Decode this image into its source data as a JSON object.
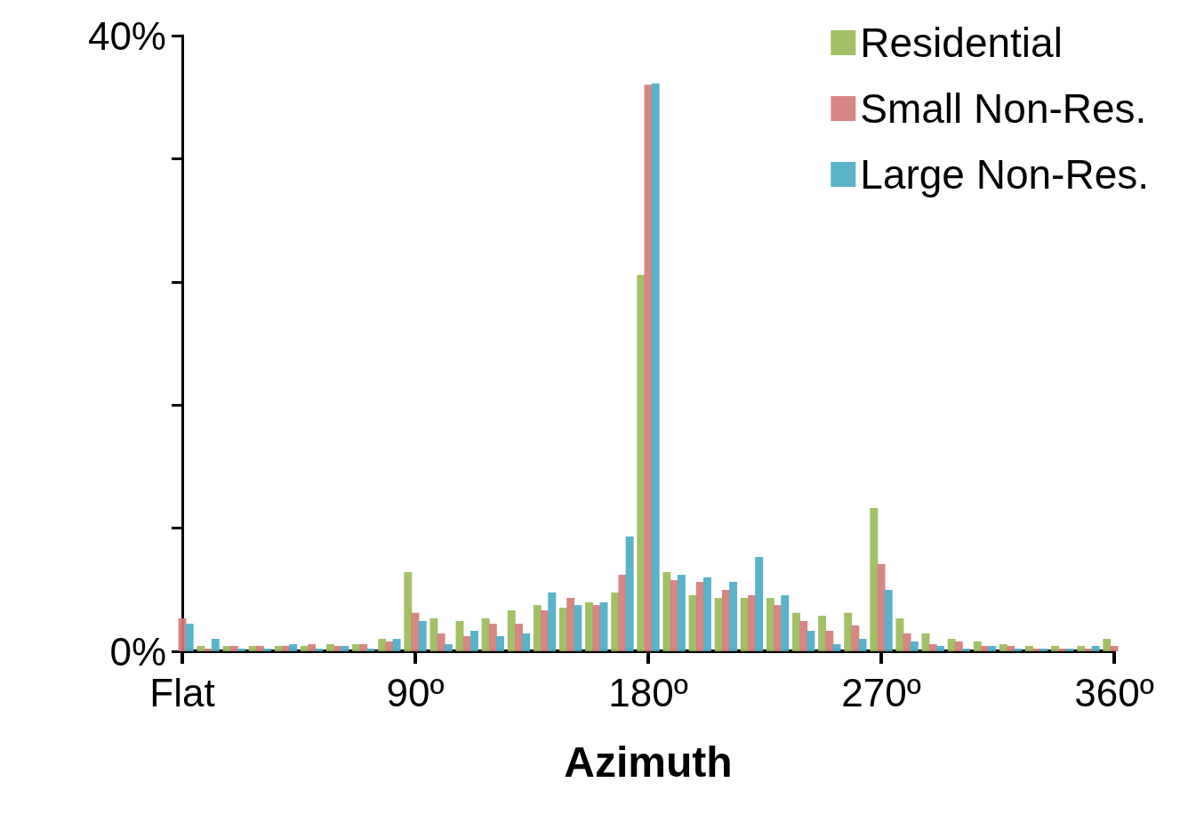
{
  "chart_data": {
    "type": "bar",
    "xlabel": "Azimuth",
    "x": [
      0,
      10,
      20,
      30,
      40,
      50,
      60,
      70,
      80,
      90,
      100,
      110,
      120,
      130,
      140,
      150,
      160,
      170,
      180,
      190,
      200,
      210,
      220,
      230,
      240,
      250,
      260,
      270,
      280,
      290,
      300,
      310,
      320,
      330,
      340,
      350,
      360
    ],
    "series": [
      {
        "name": "Residential",
        "color": "#9bbb59",
        "values": [
          null,
          0.35,
          0.35,
          0.35,
          0.35,
          0.35,
          0.46,
          0.46,
          0.81,
          5.14,
          2.14,
          1.97,
          2.14,
          2.66,
          3.0,
          2.83,
          3.18,
          3.82,
          24.45,
          5.14,
          3.64,
          3.47,
          3.47,
          3.47,
          2.5,
          2.31,
          2.5,
          9.3,
          2.14,
          1.16,
          0.81,
          0.64,
          0.46,
          0.35,
          0.35,
          0.35,
          0.81
        ]
      },
      {
        "name": "Small Non-Res.",
        "color": "#d47c7a",
        "values": [
          2.14,
          0.17,
          0.35,
          0.35,
          0.35,
          0.46,
          0.35,
          0.46,
          0.64,
          2.5,
          1.16,
          0.98,
          1.79,
          1.79,
          2.66,
          3.47,
          3.0,
          4.97,
          36.8,
          4.62,
          4.51,
          3.99,
          3.64,
          3.0,
          1.97,
          1.33,
          1.68,
          5.66,
          1.16,
          0.46,
          0.64,
          0.35,
          0.35,
          0.17,
          0.17,
          0.17,
          0.35
        ]
      },
      {
        "name": "Large Non-Res.",
        "color": "#4bacc6",
        "values": [
          1.79,
          0.81,
          0.17,
          0.17,
          0.46,
          0.17,
          0.35,
          0.17,
          0.81,
          1.97,
          0.46,
          1.33,
          0.98,
          1.16,
          3.82,
          3.0,
          3.18,
          7.46,
          36.9,
          4.97,
          4.8,
          4.51,
          6.13,
          3.64,
          1.33,
          0.46,
          0.81,
          3.99,
          0.64,
          0.35,
          0.17,
          0.35,
          0.17,
          0.17,
          0.17,
          0.35,
          null
        ]
      }
    ],
    "xlim": [
      0,
      360
    ],
    "xticks": [
      {
        "value": 0,
        "label": "Flat"
      },
      {
        "value": 90,
        "label": "90º"
      },
      {
        "value": 180,
        "label": "180º"
      },
      {
        "value": 270,
        "label": "270º"
      },
      {
        "value": 360,
        "label": "360º"
      }
    ],
    "ylim": [
      0,
      40
    ],
    "yticks": [
      {
        "value": 0,
        "label": "0%"
      },
      {
        "value": 8,
        "label": null
      },
      {
        "value": 16,
        "label": null
      },
      {
        "value": 24,
        "label": null
      },
      {
        "value": 32,
        "label": null
      },
      {
        "value": 40,
        "label": "40%"
      }
    ],
    "legend": "top right"
  }
}
